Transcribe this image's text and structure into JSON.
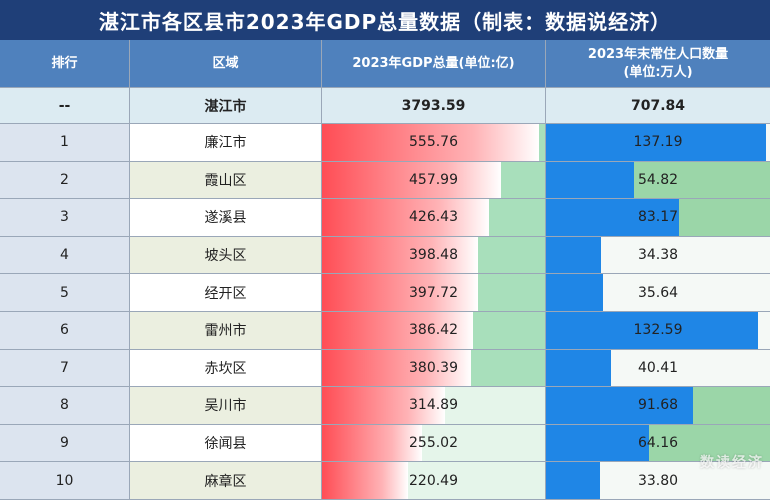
{
  "title": "湛江市各区县市2023年GDP总量数据（制表：数据说经济）",
  "header": {
    "rank": "排行",
    "region": "区域",
    "gdp": "2023年GDP总量(单位:亿)",
    "pop_line1": "2023年末常住人口数量",
    "pop_line2": "(单位:万人)"
  },
  "total": {
    "rank": "--",
    "region": "湛江市",
    "gdp": "3793.59",
    "pop": "707.84"
  },
  "watermark": "数读经济",
  "chart_data": {
    "type": "table",
    "title": "湛江市各区县市2023年GDP总量数据（制表：数据说经济）",
    "columns": [
      "排行",
      "区域",
      "2023年GDP总量(单位:亿)",
      "2023年末常住人口数量(单位:万人)"
    ],
    "rows": [
      {
        "rank": "1",
        "region": "廉江市",
        "gdp": 555.76,
        "pop": 137.19
      },
      {
        "rank": "2",
        "region": "霞山区",
        "gdp": 457.99,
        "pop": 54.82
      },
      {
        "rank": "3",
        "region": "遂溪县",
        "gdp": 426.43,
        "pop": 83.17
      },
      {
        "rank": "4",
        "region": "坡头区",
        "gdp": 398.48,
        "pop": 34.38
      },
      {
        "rank": "5",
        "region": "经开区",
        "gdp": 397.72,
        "pop": 35.64
      },
      {
        "rank": "6",
        "region": "雷州市",
        "gdp": 386.42,
        "pop": 132.59
      },
      {
        "rank": "7",
        "region": "赤坎区",
        "gdp": 380.39,
        "pop": 40.41
      },
      {
        "rank": "8",
        "region": "吴川市",
        "gdp": 314.89,
        "pop": 91.68
      },
      {
        "rank": "9",
        "region": "徐闻县",
        "gdp": 255.02,
        "pop": 64.16
      },
      {
        "rank": "10",
        "region": "麻章区",
        "gdp": 220.49,
        "pop": 33.8
      }
    ]
  }
}
